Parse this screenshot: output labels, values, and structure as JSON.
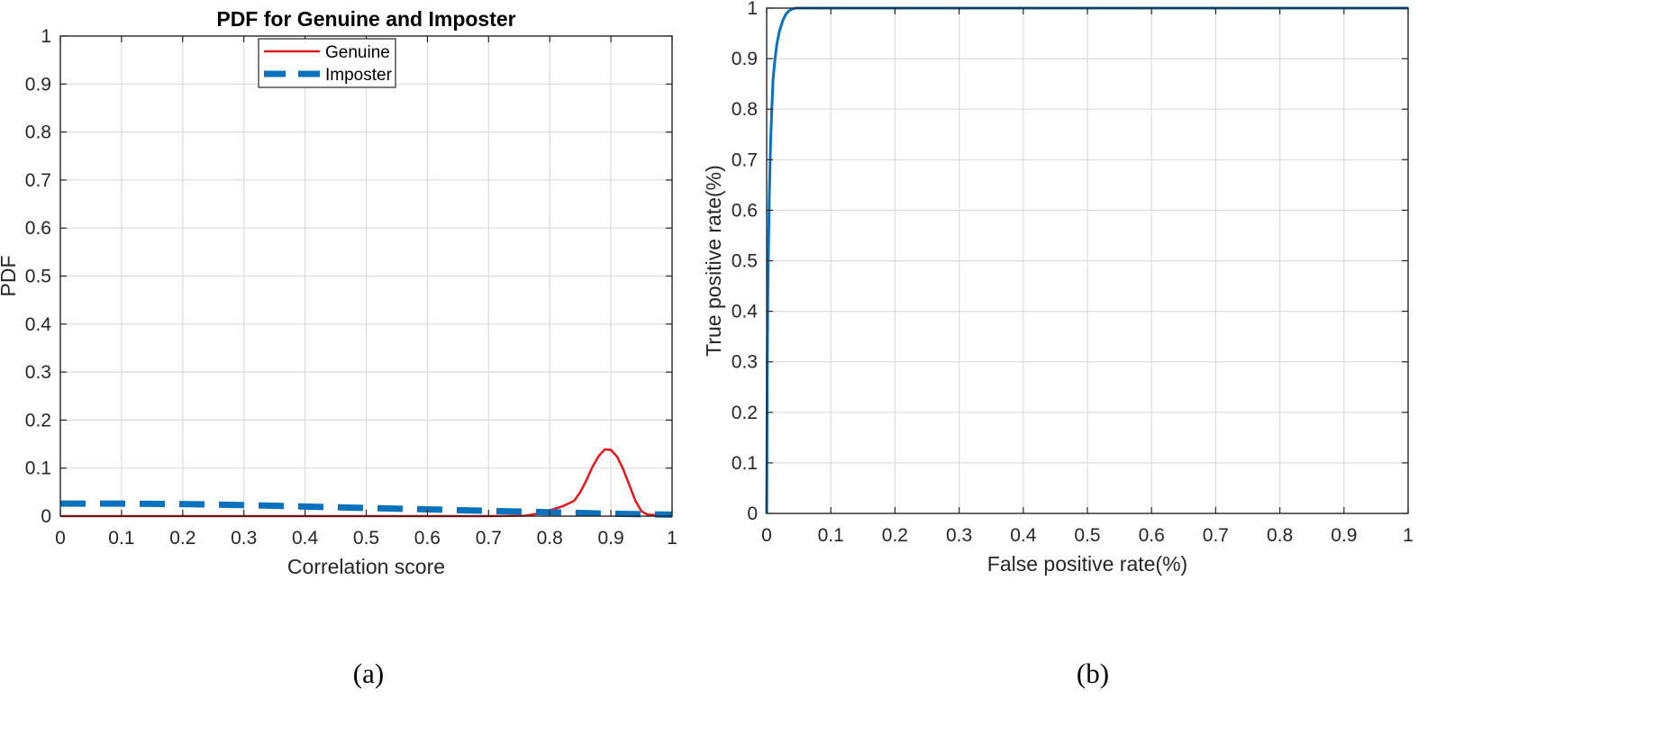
{
  "chart_data": [
    {
      "id": "a",
      "type": "line",
      "title": "PDF for Genuine and Imposter",
      "xlabel": "Correlation score",
      "ylabel": "PDF",
      "xlim": [
        0,
        1
      ],
      "ylim": [
        0,
        1
      ],
      "xticks": [
        "0",
        "0.1",
        "0.2",
        "0.3",
        "0.4",
        "0.5",
        "0.6",
        "0.7",
        "0.8",
        "0.9",
        "1"
      ],
      "yticks": [
        "0",
        "0.1",
        "0.2",
        "0.3",
        "0.4",
        "0.5",
        "0.6",
        "0.7",
        "0.8",
        "0.9",
        "1"
      ],
      "grid": true,
      "legend_position": "top-center",
      "caption": "(a)",
      "series": [
        {
          "name": "Genuine",
          "color": "#e8141b",
          "style": "solid",
          "x": [
            0,
            0.1,
            0.2,
            0.3,
            0.4,
            0.5,
            0.6,
            0.7,
            0.76,
            0.78,
            0.8,
            0.82,
            0.84,
            0.85,
            0.86,
            0.87,
            0.88,
            0.89,
            0.9,
            0.91,
            0.92,
            0.93,
            0.94,
            0.95,
            0.96,
            1
          ],
          "y": [
            0,
            0,
            0,
            0,
            0,
            0,
            0,
            0,
            0.001,
            0.005,
            0.012,
            0.02,
            0.032,
            0.05,
            0.075,
            0.103,
            0.125,
            0.139,
            0.138,
            0.124,
            0.098,
            0.065,
            0.032,
            0.01,
            0.003,
            0
          ]
        },
        {
          "name": "Imposter",
          "color": "#0a72bd",
          "style": "dashed",
          "x": [
            0,
            0.1,
            0.2,
            0.3,
            0.4,
            0.5,
            0.6,
            0.7,
            0.8,
            0.9,
            1
          ],
          "y": [
            0.026,
            0.026,
            0.025,
            0.023,
            0.02,
            0.017,
            0.014,
            0.011,
            0.008,
            0.005,
            0.003
          ]
        }
      ]
    },
    {
      "id": "b",
      "type": "line",
      "title": "",
      "xlabel": "False positive rate(%)",
      "ylabel": "True positive rate(%)",
      "xlim": [
        0,
        1
      ],
      "ylim": [
        0,
        1
      ],
      "xticks": [
        "0",
        "0.1",
        "0.2",
        "0.3",
        "0.4",
        "0.5",
        "0.6",
        "0.7",
        "0.8",
        "0.9",
        "1"
      ],
      "yticks": [
        "0",
        "0.1",
        "0.2",
        "0.3",
        "0.4",
        "0.5",
        "0.6",
        "0.7",
        "0.8",
        "0.9",
        "1"
      ],
      "grid": true,
      "caption": "(b)",
      "series": [
        {
          "color": "#0a72bd",
          "style": "solid",
          "x": [
            0,
            0.001,
            0.002,
            0.004,
            0.006,
            0.008,
            0.01,
            0.013,
            0.016,
            0.02,
            0.025,
            0.03,
            0.035,
            0.04,
            0.045,
            0.05,
            0.1,
            0.2,
            0.4,
            0.6,
            0.8,
            1
          ],
          "y": [
            0,
            0.3,
            0.45,
            0.62,
            0.73,
            0.8,
            0.86,
            0.9,
            0.93,
            0.955,
            0.975,
            0.988,
            0.995,
            0.998,
            1,
            1,
            1,
            1,
            1,
            1,
            1,
            1
          ]
        }
      ]
    }
  ]
}
